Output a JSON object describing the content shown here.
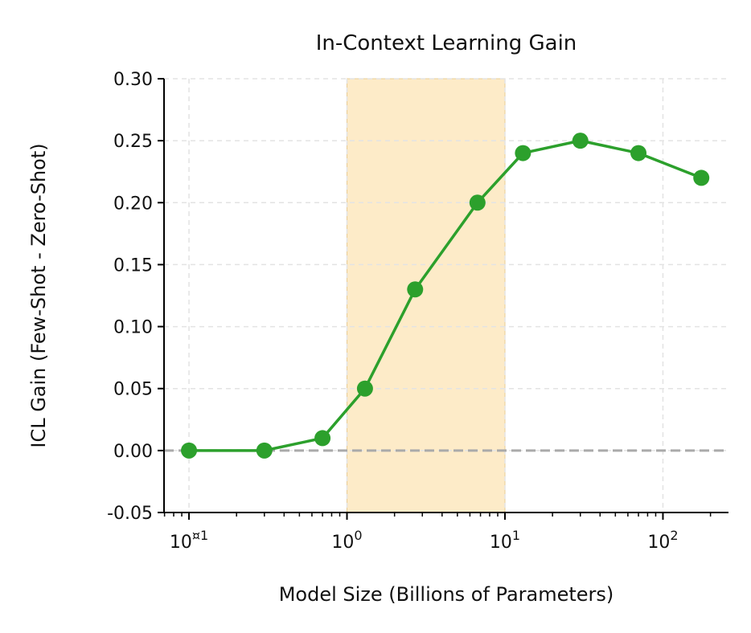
{
  "chart_data": {
    "type": "line",
    "title": "In-Context Learning Gain",
    "xlabel": "Model Size (Billions of Parameters)",
    "ylabel": "ICL Gain (Few-Shot - Zero-Shot)",
    "xscale": "log",
    "xlim": [
      0.0695,
      260
    ],
    "ylim": [
      -0.05,
      0.3
    ],
    "grid": true,
    "x_ticks": [
      {
        "value": 0.1,
        "base": "10",
        "exp": "¤1"
      },
      {
        "value": 1,
        "base": "10",
        "exp": "0"
      },
      {
        "value": 10,
        "base": "10",
        "exp": "1"
      },
      {
        "value": 100,
        "base": "10",
        "exp": "2"
      }
    ],
    "y_ticks": [
      "-0.05",
      "0.00",
      "0.05",
      "0.10",
      "0.15",
      "0.20",
      "0.25",
      "0.30"
    ],
    "series": [
      {
        "color": "#2ca02c",
        "x": [
          0.1,
          0.3,
          0.7,
          1.3,
          2.7,
          6.7,
          13,
          30,
          70,
          175
        ],
        "y": [
          0.0,
          0.0,
          0.01,
          0.05,
          0.13,
          0.2,
          0.24,
          0.25,
          0.24,
          0.22
        ]
      }
    ],
    "shaded_region": {
      "x": [
        1,
        10
      ],
      "color": "#fdebc8"
    },
    "reference_line": {
      "y": 0,
      "color": "#aaaaaa",
      "style": "dashed"
    }
  }
}
